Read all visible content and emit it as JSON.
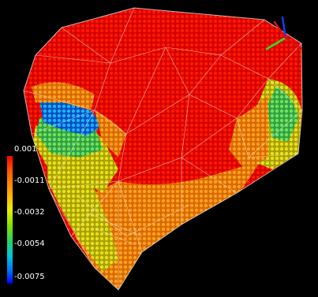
{
  "legend": {
    "labels": [
      "0.001",
      "-0.0011",
      "-0.0032",
      "-0.0054",
      "-0.0075"
    ],
    "colors": [
      "#ff0000",
      "#ff9a00",
      "#d8f000",
      "#20d0a0",
      "#0000ff"
    ]
  },
  "scene": {
    "background": "#000000",
    "mesh_color": "#e8e8e8",
    "axis_colors": {
      "x": "#d81010",
      "y": "#30e020",
      "z": "#1838ff"
    }
  }
}
